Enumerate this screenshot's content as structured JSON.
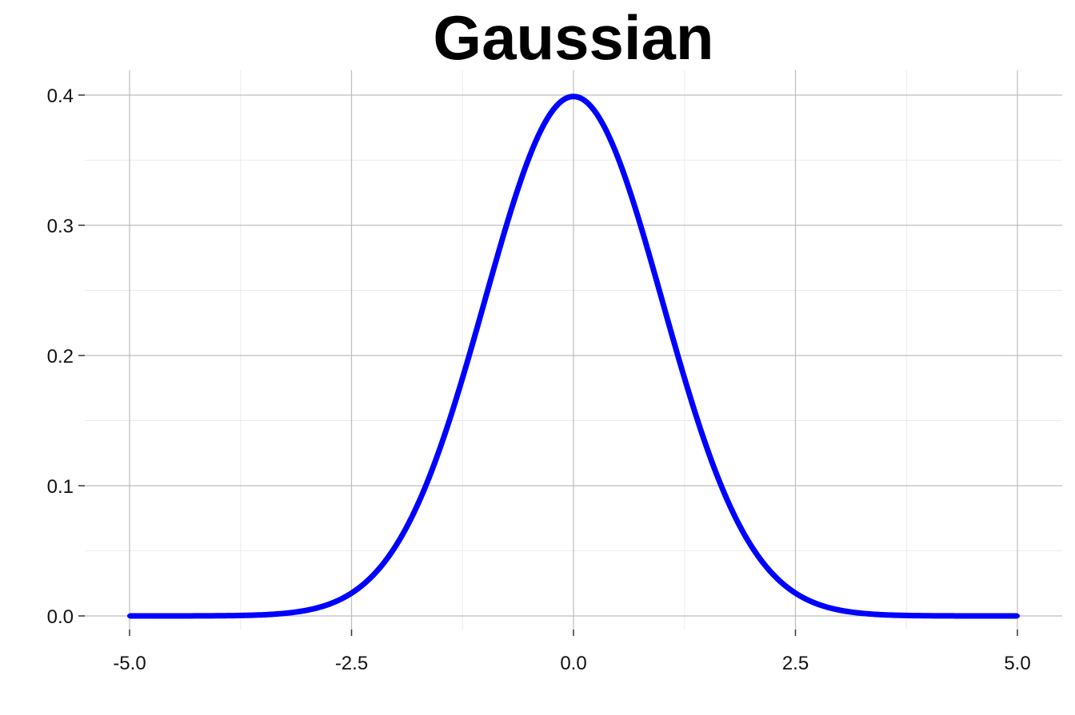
{
  "chart_data": {
    "type": "line",
    "title": "Gaussian",
    "xlabel": "",
    "ylabel": "",
    "xlim": [
      -5,
      5
    ],
    "ylim": [
      0,
      0.4
    ],
    "x_ticks": [
      "-5.0",
      "-2.5",
      "0.0",
      "2.5",
      "5.0"
    ],
    "y_ticks": [
      "0.0",
      "0.1",
      "0.2",
      "0.3",
      "0.4"
    ],
    "grid": true,
    "legend": "none",
    "series": [
      {
        "color": "#0000ff",
        "x": [
          -5,
          -4.5,
          -4,
          -3.5,
          -3,
          -2.5,
          -2,
          -1.75,
          -1.5,
          -1.25,
          -1,
          -0.75,
          -0.5,
          -0.25,
          0,
          0.25,
          0.5,
          0.75,
          1,
          1.25,
          1.5,
          1.75,
          2,
          2.5,
          3,
          3.5,
          4,
          4.5,
          5
        ],
        "y": [
          1.5e-06,
          1.6e-05,
          0.000134,
          0.000873,
          0.004432,
          0.017528,
          0.053991,
          0.086277,
          0.129518,
          0.182649,
          0.241971,
          0.301137,
          0.352065,
          0.386668,
          0.398942,
          0.386668,
          0.352065,
          0.301137,
          0.241971,
          0.182649,
          0.129518,
          0.086277,
          0.053991,
          0.017528,
          0.004432,
          0.000873,
          0.000134,
          1.6e-05,
          1.5e-06
        ]
      }
    ]
  }
}
